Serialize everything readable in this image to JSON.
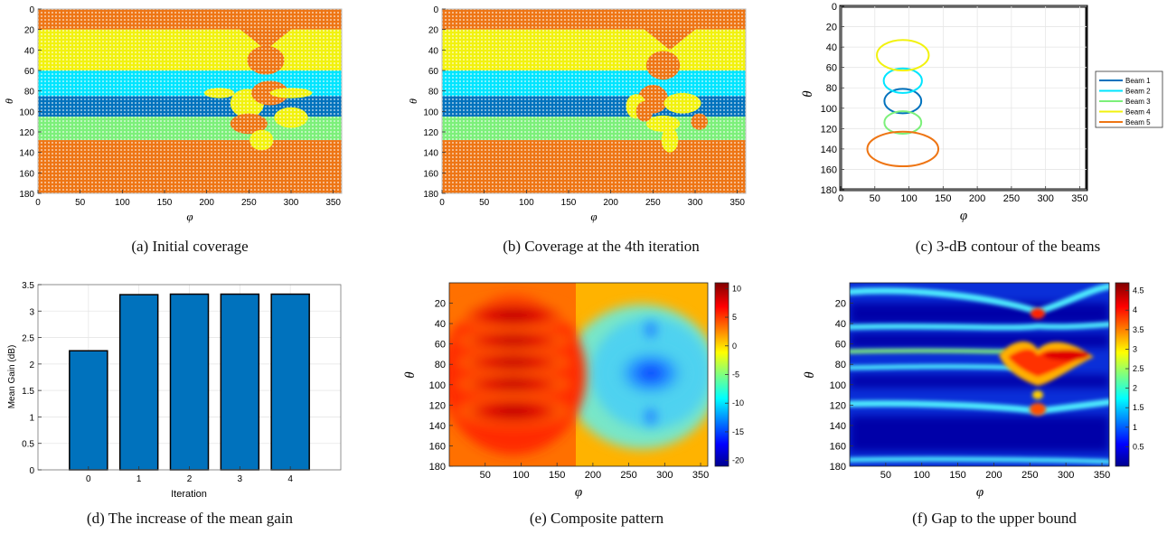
{
  "captions": {
    "a": "(a)  Initial coverage",
    "b": "(b)  Coverage at the 4th iteration",
    "c": "(c)  3-dB contour of the beams",
    "d": "(d)  The increase of the mean gain",
    "e": "(e)  Composite pattern",
    "f": "(f)  Gap to the upper bound"
  },
  "colors": {
    "beam1": "#0072BD",
    "beam2": "#00E5FF",
    "beam3": "#7CF07A",
    "beam4": "#F2F20E",
    "beam5": "#EE7514",
    "bar": "#0072BD"
  },
  "chart_data": [
    {
      "id": "a",
      "type": "scatter",
      "xlabel": "φ",
      "ylabel": "θ",
      "xlim": [
        0,
        360
      ],
      "ylim": [
        180,
        0
      ],
      "xticks": [
        "0",
        "50",
        "100",
        "150",
        "200",
        "250",
        "300",
        "350"
      ],
      "yticks": [
        "0",
        "20",
        "40",
        "60",
        "80",
        "100",
        "120",
        "140",
        "160",
        "180"
      ],
      "bands": [
        {
          "beam": 5,
          "theta": [
            0,
            20
          ]
        },
        {
          "beam": 4,
          "theta": [
            20,
            60
          ]
        },
        {
          "beam": 2,
          "theta": [
            60,
            85
          ]
        },
        {
          "beam": 1,
          "theta": [
            85,
            105
          ]
        },
        {
          "beam": 3,
          "theta": [
            105,
            128
          ]
        },
        {
          "beam": 5,
          "theta": [
            128,
            180
          ]
        }
      ]
    },
    {
      "id": "b",
      "type": "scatter",
      "xlabel": "φ",
      "ylabel": "θ",
      "xlim": [
        0,
        360
      ],
      "ylim": [
        180,
        0
      ],
      "xticks": [
        "0",
        "50",
        "100",
        "150",
        "200",
        "250",
        "300",
        "350"
      ],
      "yticks": [
        "0",
        "20",
        "40",
        "60",
        "80",
        "100",
        "120",
        "140",
        "160",
        "180"
      ],
      "bands": [
        {
          "beam": 5,
          "theta": [
            0,
            20
          ]
        },
        {
          "beam": 4,
          "theta": [
            20,
            60
          ]
        },
        {
          "beam": 2,
          "theta": [
            60,
            85
          ]
        },
        {
          "beam": 1,
          "theta": [
            85,
            105
          ]
        },
        {
          "beam": 3,
          "theta": [
            105,
            128
          ]
        },
        {
          "beam": 5,
          "theta": [
            128,
            180
          ]
        }
      ]
    },
    {
      "id": "c",
      "type": "line",
      "xlabel": "φ",
      "ylabel": "θ",
      "xlim": [
        0,
        360
      ],
      "ylim": [
        180,
        0
      ],
      "xticks": [
        "0",
        "50",
        "100",
        "150",
        "200",
        "250",
        "300",
        "350"
      ],
      "yticks": [
        "0",
        "20",
        "40",
        "60",
        "80",
        "100",
        "120",
        "140",
        "160",
        "180"
      ],
      "grid": true,
      "legend_position": "right",
      "series": [
        {
          "name": "Beam 1",
          "center": [
            91,
            93
          ],
          "radius": [
            27,
            12
          ]
        },
        {
          "name": "Beam 2",
          "center": [
            91,
            73
          ],
          "radius": [
            28,
            12
          ]
        },
        {
          "name": "Beam 3",
          "center": [
            91,
            114
          ],
          "radius": [
            27,
            11
          ]
        },
        {
          "name": "Beam 4",
          "center": [
            91,
            48
          ],
          "radius": [
            38,
            15
          ]
        },
        {
          "name": "Beam 5",
          "center": [
            91,
            140
          ],
          "radius": [
            52,
            17
          ]
        }
      ]
    },
    {
      "id": "d",
      "type": "bar",
      "xlabel": "Iteration",
      "ylabel": "Mean Gain (dB)",
      "categories": [
        "0",
        "1",
        "2",
        "3",
        "4"
      ],
      "values": [
        2.25,
        3.31,
        3.32,
        3.32,
        3.32
      ],
      "ylim": [
        0,
        3.5
      ],
      "yticks": [
        "0",
        "0.5",
        "1",
        "1.5",
        "2",
        "2.5",
        "3",
        "3.5"
      ],
      "grid": true
    },
    {
      "id": "e",
      "type": "heatmap",
      "xlabel": "φ",
      "ylabel": "θ",
      "xlim": [
        0,
        360
      ],
      "ylim": [
        180,
        0
      ],
      "xticks": [
        "50",
        "100",
        "150",
        "200",
        "250",
        "300",
        "350"
      ],
      "yticks": [
        "20",
        "40",
        "60",
        "80",
        "100",
        "120",
        "140",
        "160",
        "180"
      ],
      "colorbar_ticks": [
        "10",
        "5",
        "0",
        "-5",
        "-10",
        "-15",
        "-20"
      ],
      "colorbar_range": [
        -21,
        11
      ]
    },
    {
      "id": "f",
      "type": "heatmap",
      "xlabel": "φ",
      "ylabel": "θ",
      "xlim": [
        0,
        360
      ],
      "ylim": [
        180,
        0
      ],
      "xticks": [
        "50",
        "100",
        "150",
        "200",
        "250",
        "300",
        "350"
      ],
      "yticks": [
        "20",
        "40",
        "60",
        "80",
        "100",
        "120",
        "140",
        "160",
        "180"
      ],
      "colorbar_ticks": [
        "4.5",
        "4",
        "3.5",
        "3",
        "2.5",
        "2",
        "1.5",
        "1",
        "0.5"
      ],
      "colorbar_range": [
        0,
        4.7
      ]
    }
  ]
}
